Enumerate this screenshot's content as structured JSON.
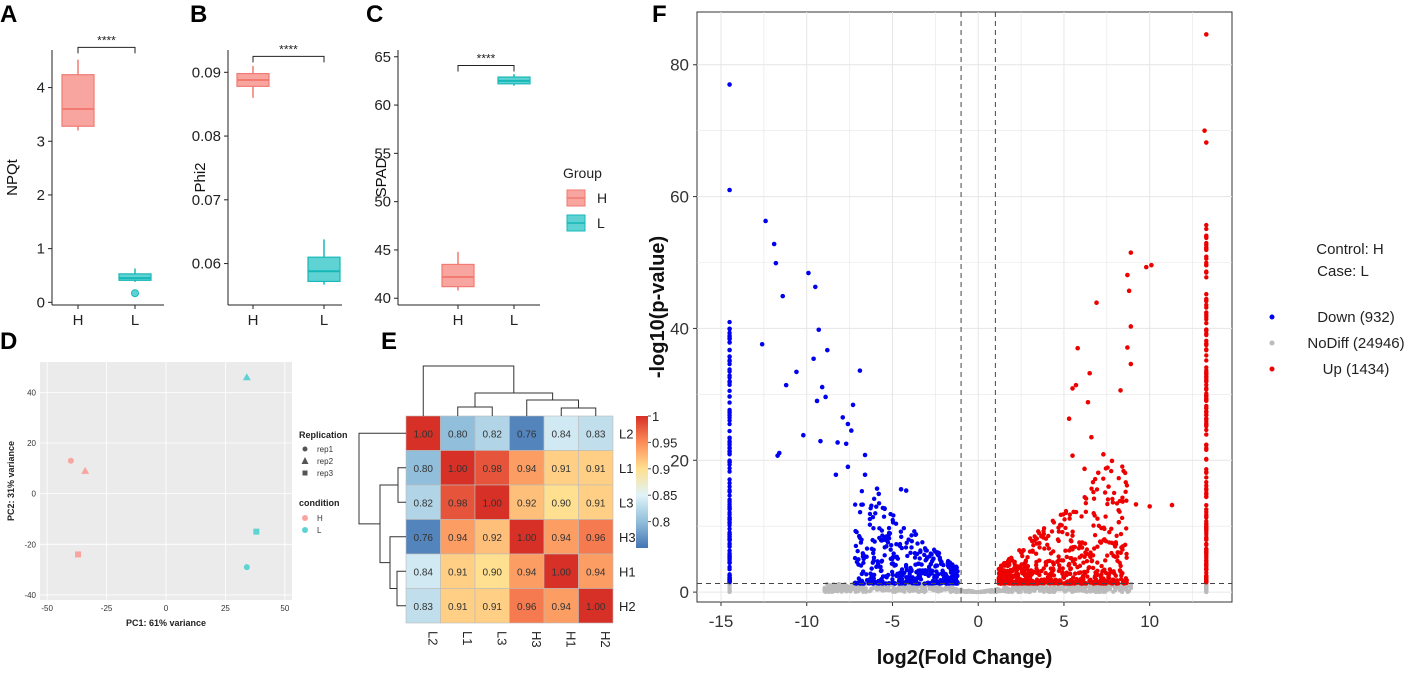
{
  "chart_data": [
    {
      "panel": "A",
      "type": "box",
      "ylabel": "NPQt",
      "categories": [
        "H",
        "L"
      ],
      "ylim": [
        -0.05,
        4.7
      ],
      "yticks": [
        0,
        1,
        2,
        3,
        4
      ],
      "ytick_labels": [
        "0",
        "1",
        "2",
        "3",
        "4"
      ],
      "boxes": [
        {
          "group": "H",
          "whisker_low": 3.2,
          "q1": 3.28,
          "median": 3.6,
          "q3": 4.24,
          "whisker_high": 4.52,
          "outliers": []
        },
        {
          "group": "L",
          "whisker_low": 0.38,
          "q1": 0.41,
          "median": 0.45,
          "q3": 0.53,
          "whisker_high": 0.63,
          "outliers": [
            0.17
          ]
        }
      ],
      "significance": "****",
      "sig_y": 4.75
    },
    {
      "panel": "B",
      "type": "box",
      "ylabel": "Phi2",
      "categories": [
        "H",
        "L"
      ],
      "ylim": [
        0.0535,
        0.0935
      ],
      "yticks": [
        0.06,
        0.07,
        0.08,
        0.09
      ],
      "ytick_labels": [
        "0.06",
        "0.07",
        "0.08",
        "0.09"
      ],
      "boxes": [
        {
          "group": "H",
          "whisker_low": 0.086,
          "q1": 0.0878,
          "median": 0.0888,
          "q3": 0.0898,
          "whisker_high": 0.091,
          "outliers": []
        },
        {
          "group": "L",
          "whisker_low": 0.0567,
          "q1": 0.0572,
          "median": 0.0588,
          "q3": 0.061,
          "whisker_high": 0.0638,
          "outliers": []
        }
      ],
      "significance": "****",
      "sig_y": 0.0925
    },
    {
      "panel": "C",
      "type": "box",
      "ylabel": "SPAD",
      "categories": [
        "H",
        "L"
      ],
      "ylim": [
        39.3,
        65.7
      ],
      "yticks": [
        40,
        45,
        50,
        55,
        60,
        65
      ],
      "ytick_labels": [
        "40",
        "45",
        "50",
        "55",
        "60",
        "65"
      ],
      "boxes": [
        {
          "group": "H",
          "whisker_low": 40.8,
          "q1": 41.2,
          "median": 42.2,
          "q3": 43.5,
          "whisker_high": 44.8,
          "outliers": []
        },
        {
          "group": "L",
          "whisker_low": 62.0,
          "q1": 62.2,
          "median": 62.5,
          "q3": 62.9,
          "whisker_high": 63.2,
          "outliers": []
        }
      ],
      "significance": "****",
      "sig_y": 64.1,
      "legend": {
        "title": "Group",
        "entries": [
          {
            "label": "H",
            "fill": "#F8A5A0",
            "stroke": "#F27A72"
          },
          {
            "label": "L",
            "fill": "#5FD3D3",
            "stroke": "#17B8B8"
          }
        ]
      }
    },
    {
      "panel": "D",
      "type": "scatter",
      "title": "",
      "xlabel": "PC1: 61% variance",
      "ylabel": "PC2: 31% variance",
      "xlim": [
        -53,
        53
      ],
      "ylim": [
        -42,
        52
      ],
      "xticks": [
        -50,
        -25,
        0,
        25,
        50
      ],
      "yticks": [
        -40,
        -20,
        0,
        20,
        40
      ],
      "points": [
        {
          "x": -40,
          "y": 13,
          "condition": "H",
          "replication": "rep1"
        },
        {
          "x": -34,
          "y": 9,
          "condition": "H",
          "replication": "rep2"
        },
        {
          "x": -37,
          "y": -24,
          "condition": "H",
          "replication": "rep3"
        },
        {
          "x": 34,
          "y": 46,
          "condition": "L",
          "replication": "rep2"
        },
        {
          "x": 38,
          "y": -15,
          "condition": "L",
          "replication": "rep3"
        },
        {
          "x": 34,
          "y": -29,
          "condition": "L",
          "replication": "rep1"
        }
      ],
      "legend": {
        "replication_title": "Replication",
        "replication": [
          "rep1",
          "rep2",
          "rep3"
        ],
        "condition_title": "condition",
        "condition": [
          {
            "label": "H",
            "color": "#F8A5A0"
          },
          {
            "label": "L",
            "color": "#5FD3D3"
          }
        ]
      }
    },
    {
      "panel": "E",
      "type": "heatmap",
      "row_labels": [
        "L2",
        "L1",
        "L3",
        "H3",
        "H1",
        "H2"
      ],
      "col_labels": [
        "L2",
        "L1",
        "L3",
        "H3",
        "H1",
        "H2"
      ],
      "values": [
        [
          1.0,
          0.8,
          0.82,
          0.76,
          0.84,
          0.83
        ],
        [
          0.8,
          1.0,
          0.98,
          0.94,
          0.91,
          0.91
        ],
        [
          0.82,
          0.98,
          1.0,
          0.92,
          0.9,
          0.91
        ],
        [
          0.76,
          0.94,
          0.92,
          1.0,
          0.94,
          0.96
        ],
        [
          0.84,
          0.91,
          0.9,
          0.94,
          1.0,
          0.94
        ],
        [
          0.83,
          0.91,
          0.91,
          0.96,
          0.94,
          1.0
        ]
      ],
      "value_labels": [
        [
          "1.00",
          "0.80",
          "0.82",
          "0.76",
          "0.84",
          "0.83"
        ],
        [
          "0.80",
          "1.00",
          "0.98",
          "0.94",
          "0.91",
          "0.91"
        ],
        [
          "0.82",
          "0.98",
          "1.00",
          "0.92",
          "0.90",
          "0.91"
        ],
        [
          "0.76",
          "0.94",
          "0.92",
          "1.00",
          "0.94",
          "0.96"
        ],
        [
          "0.84",
          "0.91",
          "0.90",
          "0.94",
          "1.00",
          "0.94"
        ],
        [
          "0.83",
          "0.91",
          "0.91",
          "0.96",
          "0.94",
          "1.00"
        ]
      ],
      "color_range": [
        0.75,
        1.0
      ],
      "colorbar_ticks": [
        1,
        0.95,
        0.9,
        0.85,
        0.8
      ],
      "colorbar_labels": [
        "1",
        "0.95",
        "0.9",
        "0.85",
        "0.8"
      ]
    },
    {
      "panel": "F",
      "type": "scatter",
      "subtype": "volcano",
      "xlabel": "log2(Fold Change)",
      "ylabel": "-log10(p-value)",
      "xlim": [
        -16.4,
        14.8
      ],
      "ylim": [
        -1.5,
        88
      ],
      "xticks": [
        -15,
        -10,
        -5,
        0,
        5,
        10
      ],
      "yticks": [
        0,
        20,
        40,
        60,
        80
      ],
      "fc_threshold": [
        -1,
        1
      ],
      "p_threshold": 1.3,
      "annotation": {
        "control": "Control: H",
        "case": "Case:    L"
      },
      "legend": [
        {
          "label": "Down (932)",
          "color": "#0000EE"
        },
        {
          "label": "NoDiff (24946)",
          "color": "#BBBBBB"
        },
        {
          "label": "Up (1434)",
          "color": "#EE0000"
        }
      ],
      "highlight_points_down": [
        [
          -14.5,
          77
        ],
        [
          -14.5,
          61
        ],
        [
          -12.4,
          56.3
        ],
        [
          -11.9,
          52.8
        ],
        [
          -11.8,
          49.9
        ],
        [
          -11.4,
          44.9
        ],
        [
          -9.9,
          48.4
        ],
        [
          -9.5,
          46.3
        ],
        [
          -12.6,
          37.6
        ],
        [
          -11.2,
          31.4
        ],
        [
          -10.6,
          33.4
        ],
        [
          -9.6,
          35.4
        ],
        [
          -9.3,
          39.8
        ],
        [
          -8.8,
          36.7
        ],
        [
          -9.1,
          31.1
        ],
        [
          -9.4,
          29.0
        ],
        [
          -8.9,
          29.6
        ],
        [
          -10.2,
          23.8
        ],
        [
          -11.6,
          21.1
        ],
        [
          -11.7,
          20.7
        ],
        [
          -9.2,
          22.9
        ],
        [
          -8.2,
          22.7
        ],
        [
          -7.9,
          26.5
        ],
        [
          -7.6,
          25.5
        ],
        [
          -7.4,
          24.5
        ],
        [
          -7.3,
          28.4
        ],
        [
          -6.9,
          33.6
        ],
        [
          -7.7,
          22.5
        ],
        [
          -7.6,
          19.0
        ],
        [
          -8.3,
          17.8
        ],
        [
          -6.6,
          20.8
        ],
        [
          -5.9,
          15.7
        ],
        [
          -6.6,
          17.8
        ],
        [
          -5.8,
          14.9
        ],
        [
          -4.5,
          15.6
        ],
        [
          -4.2,
          15.4
        ]
      ],
      "highlight_points_up": [
        [
          13.3,
          84.6
        ],
        [
          13.2,
          70.0
        ],
        [
          13.3,
          68.2
        ],
        [
          9.8,
          49.3
        ],
        [
          10.1,
          49.6
        ],
        [
          8.9,
          51.5
        ],
        [
          8.7,
          48.1
        ],
        [
          8.8,
          45.7
        ],
        [
          6.9,
          43.9
        ],
        [
          8.9,
          40.3
        ],
        [
          8.7,
          37.1
        ],
        [
          5.8,
          37.0
        ],
        [
          6.5,
          33.2
        ],
        [
          8.9,
          34.6
        ],
        [
          8.3,
          30.6
        ],
        [
          5.5,
          30.9
        ],
        [
          5.7,
          31.4
        ],
        [
          6.4,
          28.8
        ],
        [
          11.3,
          13.2
        ],
        [
          10.0,
          13.0
        ],
        [
          7.0,
          18.1
        ],
        [
          7.8,
          19.9
        ],
        [
          7.3,
          20.9
        ],
        [
          5.5,
          20.7
        ],
        [
          5.3,
          26.3
        ],
        [
          6.6,
          23.5
        ],
        [
          6.2,
          18.7
        ],
        [
          8.2,
          10.6
        ],
        [
          7.6,
          16.0
        ],
        [
          9.2,
          13.3
        ]
      ]
    }
  ],
  "panels": {
    "A": "A",
    "B": "B",
    "C": "C",
    "D": "D",
    "E": "E",
    "F": "F"
  }
}
